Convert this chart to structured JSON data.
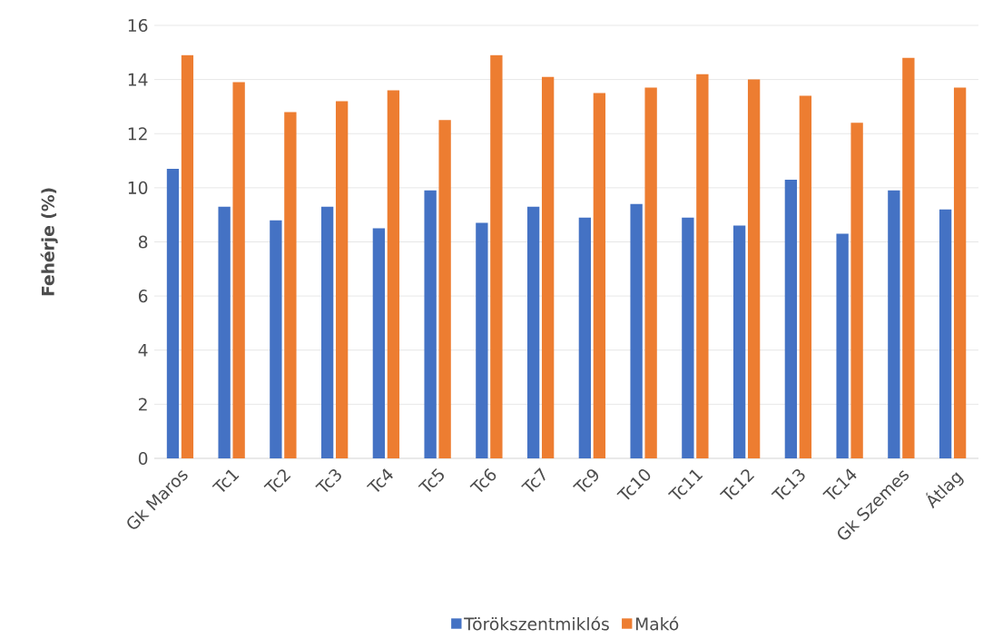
{
  "chart_data": {
    "type": "bar",
    "ylabel": "Fehérje (%)",
    "categories": [
      "Gk Maros",
      "Tc1",
      "Tc2",
      "Tc3",
      "Tc4",
      "Tc5",
      "Tc6",
      "Tc7",
      "Tc9",
      "Tc10",
      "Tc11",
      "Tc12",
      "Tc13",
      "Tc14",
      "Gk Szemes",
      "Átlag"
    ],
    "series": [
      {
        "name": "Törökszentmiklós",
        "color": "#4472c4",
        "values": [
          10.7,
          9.3,
          8.8,
          9.3,
          8.5,
          9.9,
          8.7,
          9.3,
          8.9,
          9.4,
          8.9,
          8.6,
          10.3,
          8.3,
          9.9,
          9.2
        ]
      },
      {
        "name": "Makó",
        "color": "#ed7d31",
        "values": [
          14.9,
          13.9,
          12.8,
          13.2,
          13.6,
          12.5,
          14.9,
          14.1,
          13.5,
          13.7,
          14.2,
          14.0,
          13.4,
          12.4,
          14.8,
          13.7
        ]
      }
    ],
    "ylim": [
      0,
      16
    ],
    "yticks": [
      0,
      2,
      4,
      6,
      8,
      10,
      12,
      14,
      16
    ],
    "grid": "y",
    "legend": "bottom"
  }
}
